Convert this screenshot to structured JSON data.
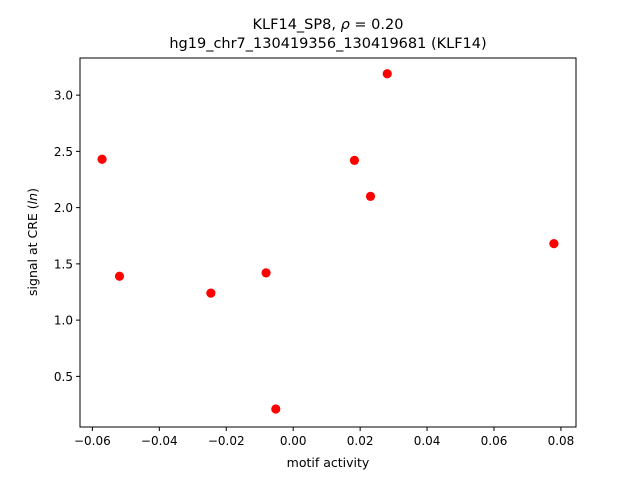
{
  "chart_data": {
    "type": "scatter",
    "title_line1_prefix": "KLF14_SP8, ",
    "title_line1_rho": "ρ",
    "title_line1_suffix": " = 0.20",
    "title_line2": "hg19_chr7_130419356_130419681 (KLF14)",
    "xlabel": "motif activity",
    "ylabel_prefix": "signal at CRE (",
    "ylabel_italic": "ln",
    "ylabel_suffix": ")",
    "xlim": [
      -0.0637,
      0.0845
    ],
    "ylim": [
      0.05,
      3.33
    ],
    "xticks": [
      -0.06,
      -0.04,
      -0.02,
      0.0,
      0.02,
      0.04,
      0.06,
      0.08
    ],
    "xtick_labels": [
      "−0.06",
      "−0.04",
      "−0.02",
      "0.00",
      "0.02",
      "0.04",
      "0.06",
      "0.08"
    ],
    "yticks": [
      0.5,
      1.0,
      1.5,
      2.0,
      2.5,
      3.0
    ],
    "ytick_labels": [
      "0.5",
      "1.0",
      "1.5",
      "2.0",
      "2.5",
      "3.0"
    ],
    "marker_color": "#ff0000",
    "grid": false,
    "points": [
      {
        "x": -0.0571,
        "y": 2.43
      },
      {
        "x": -0.0519,
        "y": 1.39
      },
      {
        "x": -0.0246,
        "y": 1.24
      },
      {
        "x": -0.0081,
        "y": 1.42
      },
      {
        "x": -0.0052,
        "y": 0.21
      },
      {
        "x": 0.0183,
        "y": 2.42
      },
      {
        "x": 0.0231,
        "y": 2.1
      },
      {
        "x": 0.0281,
        "y": 3.19
      },
      {
        "x": 0.0779,
        "y": 1.68
      }
    ]
  }
}
